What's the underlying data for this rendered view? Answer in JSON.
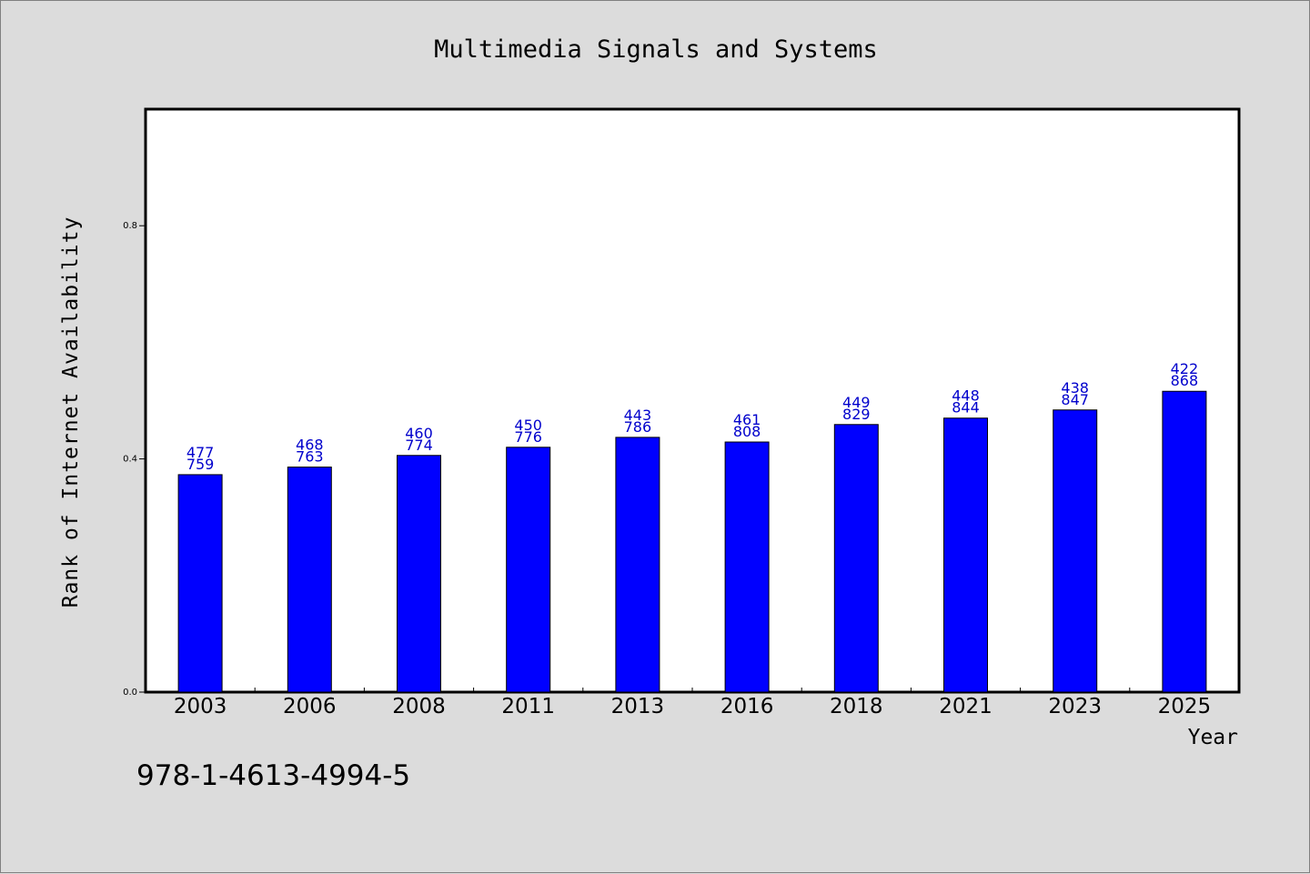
{
  "chart_data": {
    "type": "bar",
    "title": "Multimedia Signals and Systems",
    "xlabel": "Year",
    "ylabel": "Rank of Internet Availability",
    "categories": [
      "2003",
      "2006",
      "2008",
      "2011",
      "2013",
      "2016",
      "2018",
      "2021",
      "2023",
      "2025"
    ],
    "values": [
      0.373,
      0.386,
      0.406,
      0.42,
      0.437,
      0.429,
      0.459,
      0.47,
      0.484,
      0.516
    ],
    "labels": [
      [
        "477",
        "759"
      ],
      [
        "468",
        "763"
      ],
      [
        "460",
        "774"
      ],
      [
        "450",
        "776"
      ],
      [
        "443",
        "786"
      ],
      [
        "461",
        "808"
      ],
      [
        "449",
        "829"
      ],
      [
        "448",
        "844"
      ],
      [
        "438",
        "847"
      ],
      [
        "422",
        "868"
      ]
    ],
    "ylim": [
      0,
      1.0
    ],
    "yticks": [
      0.0,
      0.4,
      0.8
    ],
    "ytick_labels": [
      "0.0",
      "0.4",
      "0.8"
    ],
    "bar_color": "#0000ff",
    "label_color": "#0000cc",
    "grid": false
  },
  "footer": {
    "isbn": "978-1-4613-4994-5"
  }
}
